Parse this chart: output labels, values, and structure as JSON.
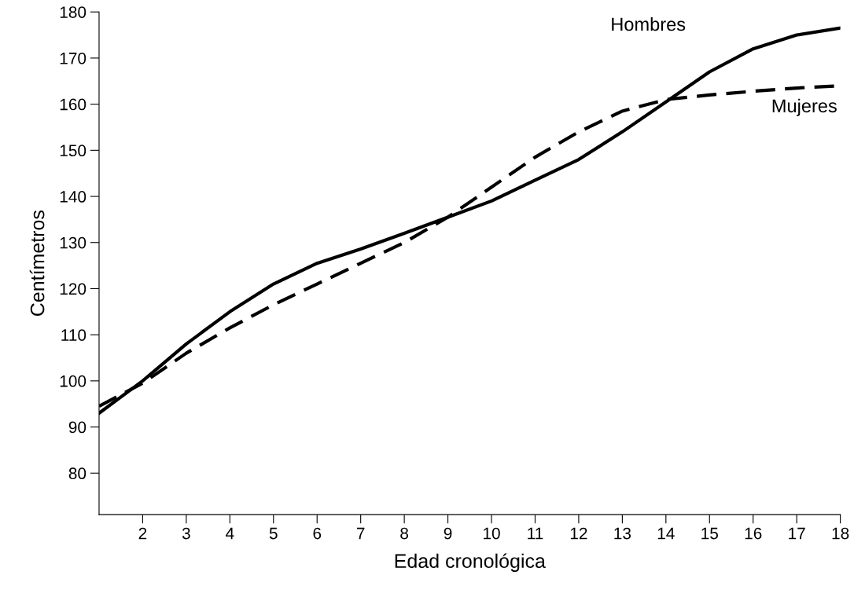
{
  "chart_data": {
    "type": "line",
    "xlabel": "Edad cronológica",
    "ylabel": "Centímetros",
    "x": [
      1,
      2,
      3,
      4,
      5,
      6,
      7,
      8,
      9,
      10,
      11,
      12,
      13,
      14,
      15,
      16,
      17,
      18
    ],
    "series": [
      {
        "name": "Hombres",
        "color": "#000000",
        "line_style": "solid",
        "values": [
          93,
          100,
          108,
          115,
          121,
          125.5,
          128.6,
          132,
          135.5,
          139,
          143.5,
          148,
          154,
          160.5,
          167,
          172,
          175,
          176.5
        ]
      },
      {
        "name": "Mujeres",
        "color": "#000000",
        "line_style": "dashed",
        "values": [
          94.5,
          99.5,
          106,
          111.5,
          116.5,
          121,
          125.5,
          130,
          135.5,
          142,
          148.5,
          154,
          158.5,
          161,
          162,
          162.8,
          163.5,
          164
        ]
      }
    ],
    "xlim": [
      1,
      18
    ],
    "ylim": [
      71,
      180
    ],
    "xticks": [
      2,
      3,
      4,
      5,
      6,
      7,
      8,
      9,
      10,
      11,
      12,
      13,
      14,
      15,
      16,
      17,
      18
    ],
    "yticks": [
      80,
      90,
      100,
      110,
      120,
      130,
      140,
      150,
      160,
      170,
      180
    ],
    "grid": false,
    "legend": false,
    "marker": "none"
  }
}
